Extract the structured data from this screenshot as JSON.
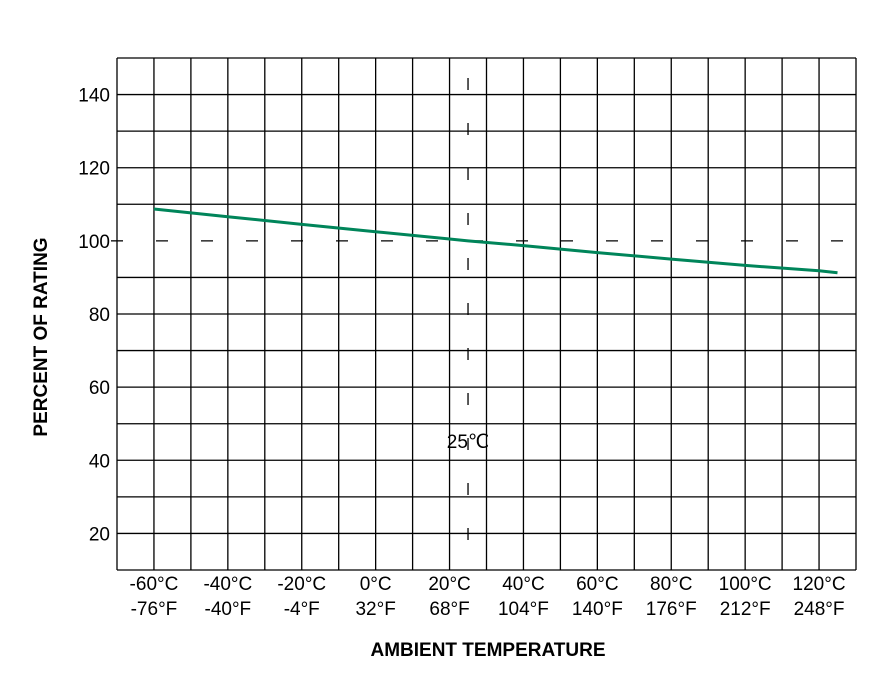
{
  "chart_data": {
    "type": "line",
    "title": "",
    "xlabel": "AMBIENT TEMPERATURE",
    "ylabel": "PERCENT OF RATING",
    "xlim": [
      -70,
      130
    ],
    "ylim": [
      10,
      150
    ],
    "grid": true,
    "x_ticks": [
      {
        "value": -60,
        "c": "-60°C",
        "f": "-76°F"
      },
      {
        "value": -40,
        "c": "-40°C",
        "f": "-40°F"
      },
      {
        "value": -20,
        "c": "-20°C",
        "f": "-4°F"
      },
      {
        "value": 0,
        "c": "0°C",
        "f": "32°F"
      },
      {
        "value": 20,
        "c": "20°C",
        "f": "68°F"
      },
      {
        "value": 40,
        "c": "40°C",
        "f": "104°F"
      },
      {
        "value": 60,
        "c": "60°C",
        "f": "140°F"
      },
      {
        "value": 80,
        "c": "80°C",
        "f": "176°F"
      },
      {
        "value": 100,
        "c": "100°C",
        "f": "212°F"
      },
      {
        "value": 120,
        "c": "120°C",
        "f": "248°F"
      }
    ],
    "y_ticks": [
      20,
      40,
      60,
      80,
      100,
      120,
      140
    ],
    "reference": {
      "x": 25,
      "y": 100,
      "label": "25℃"
    },
    "series": [
      {
        "color": "#00855a",
        "x": [
          -60,
          -40,
          -20,
          0,
          20,
          25,
          40,
          60,
          80,
          100,
          120,
          125
        ],
        "y": [
          108.7,
          106.6,
          104.5,
          102.5,
          100.5,
          100,
          98.7,
          96.8,
          95.0,
          93.3,
          91.8,
          91.3
        ]
      }
    ]
  }
}
